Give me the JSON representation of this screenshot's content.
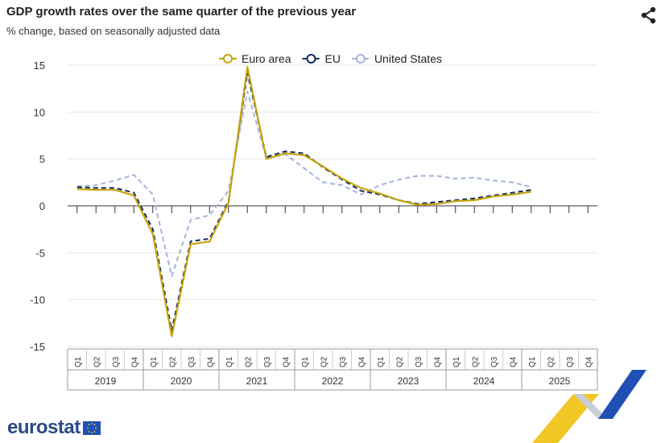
{
  "header": {
    "title": "GDP growth rates over the same quarter of the previous year",
    "subtitle": "% change, based on seasonally adjusted data",
    "share_icon": "share-icon"
  },
  "branding": {
    "logo_text": "eurostat"
  },
  "chart_data": {
    "type": "line",
    "title": "GDP growth rates over the same quarter of the previous year",
    "subtitle": "% change, based on seasonally adjusted data",
    "ylim": [
      -15,
      15
    ],
    "yticks": [
      15,
      10,
      5,
      0,
      -5,
      -10,
      -15
    ],
    "grid": true,
    "legend_position": "top",
    "quarters": [
      "Q1",
      "Q2",
      "Q3",
      "Q4",
      "Q1",
      "Q2",
      "Q3",
      "Q4",
      "Q1",
      "Q2",
      "Q3",
      "Q4",
      "Q1",
      "Q2",
      "Q3",
      "Q4",
      "Q1",
      "Q2",
      "Q3",
      "Q4",
      "Q1",
      "Q2",
      "Q3",
      "Q4",
      "Q1",
      "Q2",
      "Q3",
      "Q4"
    ],
    "years": [
      "2019",
      "2020",
      "2021",
      "2022",
      "2023",
      "2024",
      "2025"
    ],
    "series": [
      {
        "name": "Euro area",
        "color": "#c7a20a",
        "dash": "solid",
        "values": [
          1.8,
          1.7,
          1.7,
          1.1,
          -3.0,
          -13.9,
          -4.1,
          -3.8,
          0.3,
          14.8,
          5.0,
          5.6,
          5.4,
          4.2,
          2.9,
          1.9,
          1.3,
          0.6,
          0.1,
          0.2,
          0.5,
          0.6,
          1.0,
          1.2,
          1.5,
          null,
          null,
          null
        ]
      },
      {
        "name": "EU",
        "color": "#0e2a5c",
        "dash": "dashed",
        "values": [
          2.0,
          1.9,
          1.9,
          1.4,
          -2.5,
          -13.3,
          -3.8,
          -3.5,
          0.5,
          14.2,
          5.2,
          5.8,
          5.6,
          4.1,
          2.8,
          1.6,
          1.2,
          0.6,
          0.2,
          0.4,
          0.6,
          0.8,
          1.1,
          1.4,
          1.7,
          null,
          null,
          null
        ]
      },
      {
        "name": "United States",
        "color": "#a3b4dc",
        "dash": "dashed",
        "values": [
          2.1,
          2.2,
          2.7,
          3.3,
          1.2,
          -7.5,
          -1.5,
          -1.0,
          1.6,
          12.2,
          5.1,
          5.5,
          4.0,
          2.5,
          2.2,
          1.2,
          2.2,
          2.8,
          3.2,
          3.2,
          2.9,
          3.0,
          2.7,
          2.5,
          2.0,
          null,
          null,
          null
        ]
      }
    ]
  }
}
